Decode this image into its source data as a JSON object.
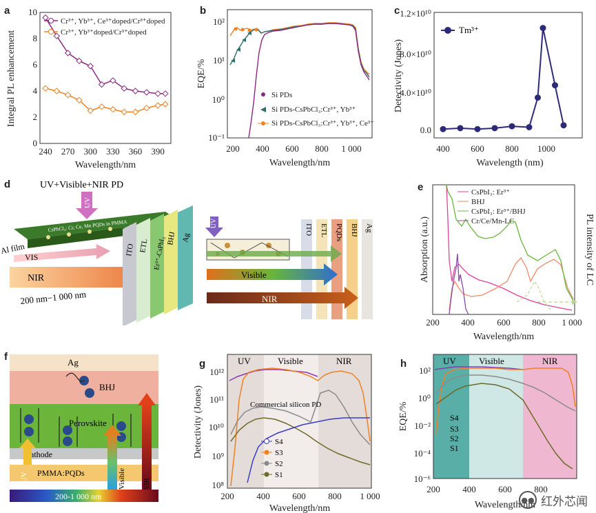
{
  "panels": {
    "a": "a",
    "b": "b",
    "c": "c",
    "d": "d",
    "e": "e",
    "f": "f",
    "g": "g",
    "h": "h"
  },
  "colors": {
    "purple": "#8a2a7e",
    "orange": "#f08020",
    "teal": "#2f6e6a",
    "navy": "#2d2a78",
    "green": "#6ab53a",
    "pink": "#e0409a"
  },
  "chart_data": [
    {
      "id": "a",
      "type": "line",
      "xlabel": "Wavelength/nm",
      "ylabel": "Integral PL enhancement",
      "x": [
        240,
        255,
        270,
        285,
        300,
        315,
        330,
        345,
        360,
        375,
        390,
        400
      ],
      "xticks": [
        240,
        270,
        300,
        330,
        360,
        390
      ],
      "ylim": [
        0,
        10
      ],
      "yticks": [
        0,
        2,
        4,
        6,
        8,
        10
      ],
      "series": [
        {
          "name": "Cr3+, Yb3+, Ce3+doped/Cr3+doped",
          "values": [
            9.6,
            8.2,
            6.9,
            6.3,
            5.9,
            4.5,
            4.8,
            4.2,
            4.0,
            3.9,
            3.8,
            3.8
          ]
        },
        {
          "name": "Cr3+, Yb3+doped/Cr3+doped",
          "values": [
            4.2,
            4.0,
            3.7,
            3.3,
            2.5,
            2.8,
            2.6,
            2.4,
            2.4,
            2.7,
            2.9,
            3.0
          ]
        }
      ],
      "legend": [
        "Cr³⁺, Yb³⁺, Ce³⁺doped/Cr³⁺doped",
        "Cr³⁺, Yb³⁺doped/Cr³⁺doped"
      ]
    },
    {
      "id": "b",
      "type": "line",
      "xlabel": "Wavelength/nm",
      "ylabel": "EQE/%",
      "yscale": "log",
      "xticks": [
        200,
        400,
        600,
        800,
        1000
      ],
      "xticklabels": [
        "200",
        "400",
        "600",
        "800",
        "1 000"
      ],
      "yticks": [
        "10⁻¹",
        "10⁰",
        "10¹",
        "10²"
      ],
      "legend": [
        "Si PDs",
        "Si PDs-CsPbCl₃:Cr³⁺, Yb³⁺",
        "Si PDs-CsPbCl₃:Cr³⁺, Yb³⁺, Ce³⁺"
      ]
    },
    {
      "id": "c",
      "type": "line",
      "xlabel": "Wavelength (nm)",
      "ylabel": "Detectivity (Jones)",
      "x": [
        400,
        500,
        600,
        700,
        800,
        900,
        950,
        980,
        1050,
        1100
      ],
      "values": [
        0.02,
        0.03,
        0.02,
        0.03,
        0.05,
        0.04,
        0.35,
        1.08,
        0.48,
        0.06
      ],
      "yticks": [
        "0.0",
        "4.0×10¹⁰",
        "8.0×10¹⁰",
        "1.2×10¹⁰"
      ],
      "xticks": [
        400,
        600,
        800,
        1000
      ],
      "legend": "Tm³⁺"
    },
    {
      "id": "e",
      "type": "line",
      "xlabel": "Wavelength/nm",
      "ylabel_left": "Absorption (a.u.)",
      "ylabel_right": "PL intensity of LC",
      "xticks": [
        "200",
        "400",
        "600",
        "800",
        "1 000"
      ],
      "legend": [
        "CsPbI₃: Er³⁺",
        "BHJ",
        "CsPbI₃: Er³⁺/BHJ",
        "Cr/Ce/Mn-LC"
      ]
    },
    {
      "id": "g",
      "type": "line",
      "xlabel": "Wavelength/nm",
      "ylabel": "Detectivity (Jones)",
      "yscale": "log",
      "regions": [
        "UV",
        "Visible",
        "NIR"
      ],
      "annotation": "Commercial silicon PD",
      "xticks": [
        "200",
        "400",
        "600",
        "800",
        "1 000"
      ],
      "yticks": [
        "10⁸",
        "10⁹",
        "10¹⁰",
        "10¹¹",
        "10¹²"
      ],
      "legend": [
        "S4",
        "S3",
        "S2",
        "S1"
      ]
    },
    {
      "id": "h",
      "type": "line",
      "xlabel": "Wavelength/nm",
      "ylabel": "EQE/%",
      "yscale": "log",
      "regions": [
        "UV",
        "Visible",
        "NIR"
      ],
      "xticks": [
        "200",
        "400",
        "600",
        "800"
      ],
      "yticks": [
        "10⁻⁶",
        "10⁻⁴",
        "10⁻²",
        "10⁰",
        "10²"
      ],
      "legend": [
        "S4",
        "S3",
        "S2",
        "S1"
      ]
    }
  ],
  "diagram_d": {
    "title": "UV+Visible+NIR PD",
    "uv": "UV",
    "vis": "VIS",
    "nir": "NIR",
    "range": "200 nm−1 000 nm",
    "alfilm": "Al film",
    "film": "CsPbCl₃: Cr, Ce, Mn PQDs in PMMA",
    "layers": [
      "ITO",
      "ETL",
      "Er³⁺-CsPbI₃",
      "BHJ",
      "Ag"
    ],
    "layers2": [
      "ITO",
      "ETL",
      "PQDs",
      "BHJ",
      "Ag"
    ],
    "arrows": [
      "UV",
      "Visible",
      "NIR"
    ]
  },
  "diagram_f": {
    "ag": "Ag",
    "bhj": "BHJ",
    "perovskite": "Perovskite",
    "cathode": "Cathode",
    "pmma": "PMMA:PQDs",
    "uv": "UV",
    "visible": "Visible",
    "nir": "NIR",
    "range": "200-1 000 nm"
  },
  "watermark": "红外芯闻"
}
